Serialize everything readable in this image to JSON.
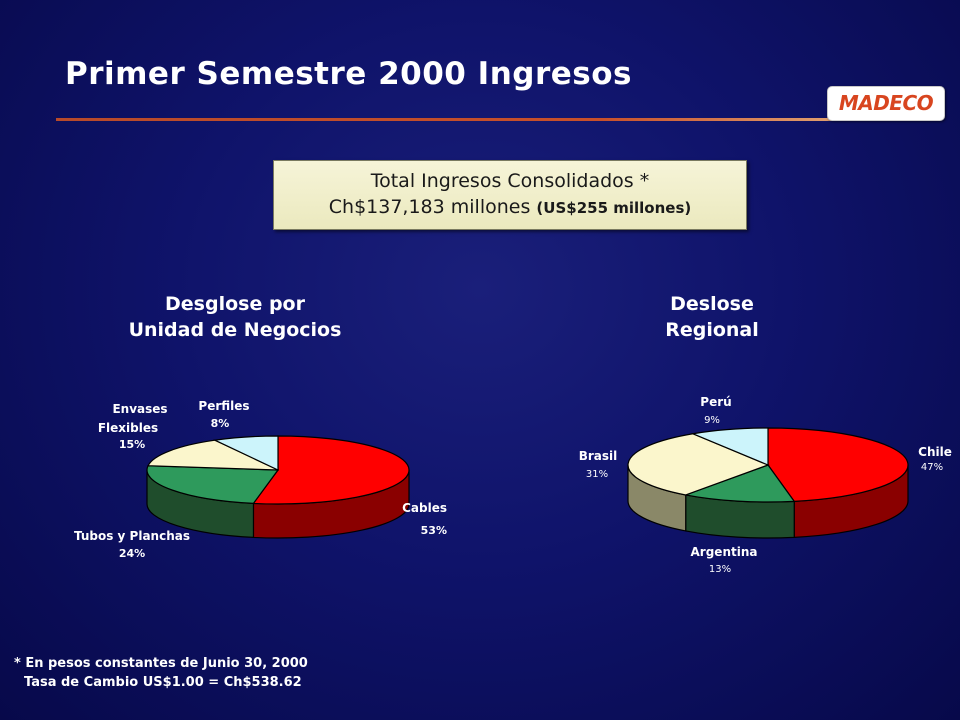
{
  "header": {
    "title": "Primer Semestre 2000 Ingresos",
    "logo_text": "MADECO"
  },
  "total": {
    "line1": "Total Ingresos Consolidados *",
    "line2_main": "Ch$137,183 millones",
    "line2_usd": "(US$255 millones)"
  },
  "sections": {
    "business": [
      "Desglose por",
      "Unidad de Negocios"
    ],
    "regional": [
      "Deslose",
      "Regional"
    ]
  },
  "chart_data": [
    {
      "type": "pie",
      "title": "Desglose por Unidad de Negocios",
      "style": "3d",
      "slices": [
        {
          "label_lines": [
            "Cables"
          ],
          "pct_label": "53%",
          "value": 53,
          "color": "#ff0000"
        },
        {
          "label_lines": [
            "Tubos y Planchas"
          ],
          "pct_label": "24%",
          "value": 24,
          "color": "#2e9a5c"
        },
        {
          "label_lines": [
            "Envases",
            "Flexibles"
          ],
          "pct_label": "15%",
          "value": 15,
          "color": "#fbf6cc"
        },
        {
          "label_lines": [
            "Perfiles"
          ],
          "pct_label": "8%",
          "value": 8,
          "color": "#ccf4fb"
        }
      ]
    },
    {
      "type": "pie",
      "title": "Deslose Regional",
      "style": "3d",
      "slices": [
        {
          "label_lines": [
            "Chile"
          ],
          "pct_label": "47%",
          "value": 47,
          "color": "#ff0000"
        },
        {
          "label_lines": [
            "Argentina"
          ],
          "pct_label": "13%",
          "value": 13,
          "color": "#2e9a5c"
        },
        {
          "label_lines": [
            "Brasil"
          ],
          "pct_label": "31%",
          "value": 31,
          "color": "#fbf6cc"
        },
        {
          "label_lines": [
            "Perú"
          ],
          "pct_label": "9%",
          "value": 9,
          "color": "#ccf4fb"
        }
      ]
    }
  ],
  "footnotes": {
    "line1": "* En pesos constantes de Junio 30, 2000",
    "line2": "Tasa de Cambio US$1.00 = Ch$538.62"
  }
}
